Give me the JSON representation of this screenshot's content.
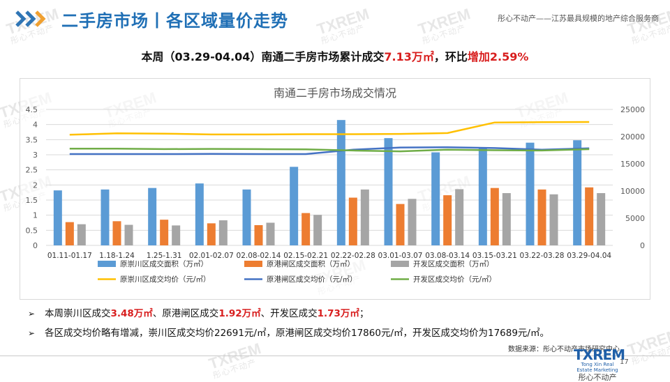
{
  "header": {
    "title": "二手房市场丨各区域量价走势",
    "tagline": "彤心不动产——江苏最具规模的地产综合服务商"
  },
  "headline": {
    "prefix": "本周（03.29-04.04）南通二手房市场累计成交",
    "volume": "7.13万㎡",
    "mid": "，环比",
    "change": "增加2.59%"
  },
  "chart_data": {
    "type": "bar",
    "title": "南通二手房市场成交情况",
    "categories": [
      "01.11-01.17",
      "1.18-1.24",
      "1.25-1.31",
      "02.01-02.07",
      "02.08-02.14",
      "02.15-02.21",
      "02.22-02.28",
      "03.01-03.07",
      "03.08-03.14",
      "03.15-03.21",
      "03.22-03.28",
      "03.29-04.04"
    ],
    "left_axis": {
      "ylim": [
        0,
        4.5
      ],
      "ticks": [
        "0",
        "0.5",
        "1",
        "1.5",
        "2",
        "2.5",
        "3",
        "3.5",
        "4",
        "4.5"
      ]
    },
    "right_axis": {
      "ylim": [
        0,
        25000
      ],
      "ticks": [
        "0",
        "5000",
        "10000",
        "15000",
        "20000",
        "25000"
      ]
    },
    "series": [
      {
        "name": "原崇川区成交面积（万㎡）",
        "kind": "bar",
        "axis": "left",
        "color": "#5b9bd5",
        "values": [
          1.82,
          1.85,
          1.9,
          2.05,
          1.85,
          2.6,
          4.15,
          3.55,
          3.08,
          3.22,
          3.4,
          3.48
        ]
      },
      {
        "name": "原港闸区成交面积（万㎡）",
        "kind": "bar",
        "axis": "left",
        "color": "#ed7d31",
        "values": [
          0.77,
          0.8,
          0.85,
          0.73,
          0.67,
          1.07,
          1.58,
          1.37,
          1.66,
          1.9,
          1.85,
          1.92
        ]
      },
      {
        "name": "开发区成交面积（万㎡）",
        "kind": "bar",
        "axis": "left",
        "color": "#a5a5a5",
        "values": [
          0.7,
          0.68,
          0.66,
          0.83,
          0.75,
          1.01,
          1.85,
          1.54,
          1.86,
          1.73,
          1.69,
          1.73
        ]
      },
      {
        "name": "原崇川区成交均价（元/㎡）",
        "kind": "line",
        "axis": "right",
        "color": "#ffc000",
        "values": [
          20350,
          20600,
          20550,
          20400,
          20400,
          20450,
          20450,
          20500,
          20650,
          22600,
          22650,
          22691
        ]
      },
      {
        "name": "原港闸区成交均价（元/㎡）",
        "kind": "line",
        "axis": "right",
        "color": "#4472c4",
        "values": [
          16800,
          16800,
          16800,
          16820,
          16800,
          16800,
          17600,
          18000,
          18050,
          17900,
          17600,
          17860
        ]
      },
      {
        "name": "开发区成交均价（元/㎡）",
        "kind": "line",
        "axis": "right",
        "color": "#70ad47",
        "values": [
          17800,
          17800,
          17700,
          17750,
          17700,
          17650,
          17450,
          17300,
          17600,
          17500,
          17450,
          17689
        ]
      }
    ],
    "legend_position": "bottom"
  },
  "bullets": {
    "b1": {
      "p1": "本周崇川区成交",
      "v1": "3.48万㎡",
      "p2": "、原港闸区成交",
      "v2": "1.92万㎡",
      "p3": "、开发区成交",
      "v3": "1.73万㎡",
      "p4": "；"
    },
    "b2": "各区成交均价略有增减，崇川区成交均价22691元/㎡，原港闸区成交均价17860元/㎡，开发区成交均价为17689元/㎡。"
  },
  "footer": {
    "source": "数据来源：彤心不动产市场研究中心",
    "logo_main": "TXREM",
    "logo_sub": "Tong Xin Real Estate Marketing",
    "logo_cn": "彤心不动产",
    "page_number": "17"
  },
  "colors": {
    "accent_blue": "#1f6fb5",
    "highlight_red": "#d81e1e"
  },
  "icons": {
    "chevrons": "double-chevron-icon",
    "bullet": "arrow-bullet-icon"
  }
}
